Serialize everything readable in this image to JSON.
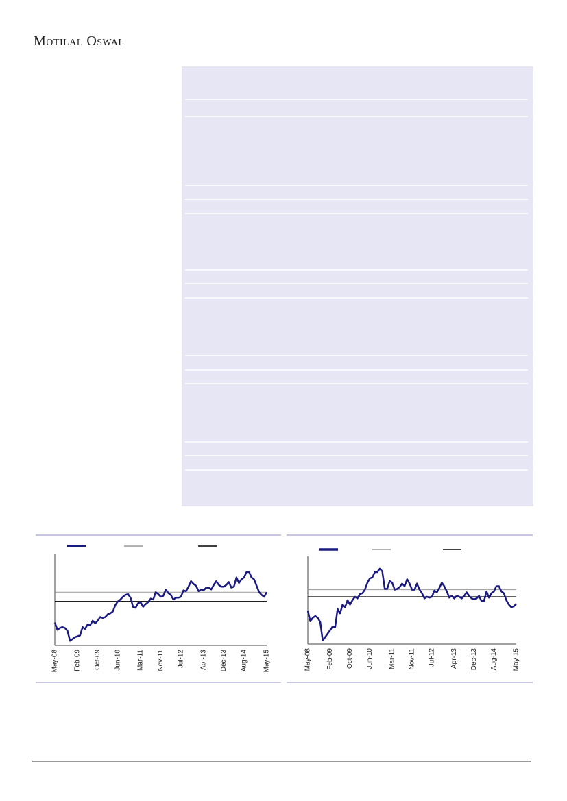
{
  "header": {
    "brand": "Motilal Oswal"
  },
  "chart_data": [
    {
      "type": "line",
      "categories": [
        "May-08",
        null,
        null,
        null,
        null,
        null,
        null,
        null,
        null,
        "Feb-09",
        null,
        null,
        null,
        null,
        null,
        null,
        null,
        "Oct-09",
        null,
        null,
        null,
        null,
        null,
        null,
        null,
        "Jun-10",
        null,
        null,
        null,
        null,
        null,
        null,
        null,
        null,
        "Mar-11",
        null,
        null,
        null,
        null,
        null,
        null,
        null,
        "Nov-11",
        null,
        null,
        null,
        null,
        null,
        null,
        null,
        "Jul-12",
        null,
        null,
        null,
        null,
        null,
        null,
        null,
        null,
        "Apr-13",
        null,
        null,
        null,
        null,
        null,
        null,
        null,
        "Dec-13",
        null,
        null,
        null,
        null,
        null,
        null,
        null,
        "Aug-14",
        null,
        null,
        null,
        null,
        null,
        null,
        null,
        null,
        "May-15"
      ],
      "series": [
        {
          "color": "#1a1a80",
          "values": [
            25,
            17,
            19,
            20,
            19,
            16,
            5,
            7,
            9,
            10,
            11,
            20,
            18,
            23,
            22,
            27,
            24,
            27,
            31,
            30,
            31,
            34,
            35,
            37,
            44,
            48,
            50,
            53,
            55,
            56,
            52,
            42,
            41,
            46,
            47,
            42,
            45,
            47,
            51,
            50,
            58,
            56,
            53,
            54,
            61,
            57,
            55,
            50,
            52,
            52,
            53,
            60,
            59,
            64,
            70,
            67,
            65,
            59,
            61,
            60,
            63,
            63,
            61,
            66,
            70,
            66,
            64,
            64,
            66,
            69,
            63,
            64,
            74,
            68,
            72,
            74,
            80,
            80,
            74,
            72,
            65,
            58,
            55,
            53,
            58
          ]
        }
      ],
      "hlines": [
        {
          "value": 58,
          "color": "#999999"
        },
        {
          "value": 48,
          "color": "#000000"
        }
      ],
      "ylim": [
        0,
        100
      ]
    },
    {
      "type": "line",
      "categories": [
        "May-08",
        null,
        null,
        null,
        null,
        null,
        null,
        null,
        null,
        "Feb-09",
        null,
        null,
        null,
        null,
        null,
        null,
        null,
        "Oct-09",
        null,
        null,
        null,
        null,
        null,
        null,
        null,
        "Jun-10",
        null,
        null,
        null,
        null,
        null,
        null,
        null,
        null,
        "Mar-11",
        null,
        null,
        null,
        null,
        null,
        null,
        null,
        "Nov-11",
        null,
        null,
        null,
        null,
        null,
        null,
        null,
        "Jul-12",
        null,
        null,
        null,
        null,
        null,
        null,
        null,
        null,
        "Apr-13",
        null,
        null,
        null,
        null,
        null,
        null,
        null,
        "Dec-13",
        null,
        null,
        null,
        null,
        null,
        null,
        null,
        "Aug-14",
        null,
        null,
        null,
        null,
        null,
        null,
        null,
        null,
        "May-15"
      ],
      "series": [
        {
          "color": "#1a1a80",
          "values": [
            38,
            26,
            30,
            32,
            30,
            25,
            4,
            8,
            12,
            16,
            20,
            19,
            40,
            35,
            45,
            42,
            50,
            45,
            50,
            54,
            52,
            57,
            58,
            62,
            70,
            75,
            76,
            82,
            82,
            86,
            83,
            63,
            63,
            72,
            70,
            62,
            63,
            65,
            69,
            66,
            74,
            69,
            62,
            62,
            69,
            62,
            58,
            52,
            54,
            53,
            54,
            61,
            59,
            64,
            70,
            66,
            60,
            53,
            55,
            52,
            55,
            54,
            52,
            55,
            59,
            55,
            52,
            51,
            52,
            55,
            49,
            49,
            60,
            53,
            58,
            60,
            66,
            66,
            60,
            58,
            50,
            45,
            42,
            43,
            46
          ]
        }
      ],
      "hlines": [
        {
          "value": 62,
          "color": "#999999"
        },
        {
          "value": 54,
          "color": "#000000"
        }
      ],
      "ylim": [
        0,
        100
      ]
    }
  ]
}
